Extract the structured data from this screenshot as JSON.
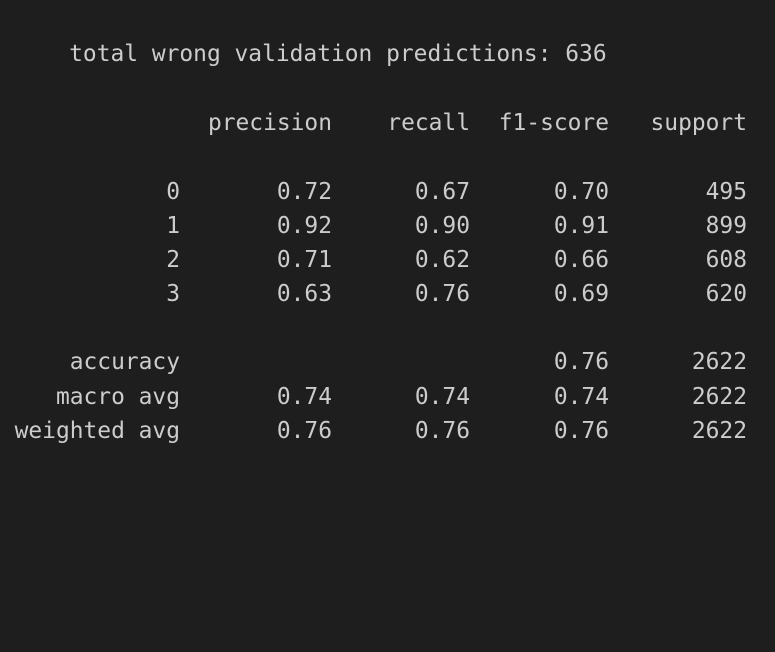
{
  "summary": "total wrong validation predictions: 636",
  "report": {
    "headers": {
      "precision": "precision",
      "recall": "recall",
      "f1": "f1-score",
      "support": "support"
    },
    "rows": [
      {
        "label": "0",
        "precision": "0.72",
        "recall": "0.67",
        "f1": "0.70",
        "support": "495"
      },
      {
        "label": "1",
        "precision": "0.92",
        "recall": "0.90",
        "f1": "0.91",
        "support": "899"
      },
      {
        "label": "2",
        "precision": "0.71",
        "recall": "0.62",
        "f1": "0.66",
        "support": "608"
      },
      {
        "label": "3",
        "precision": "0.63",
        "recall": "0.76",
        "f1": "0.69",
        "support": "620"
      }
    ],
    "totals": [
      {
        "label": "accuracy",
        "precision": "",
        "recall": "",
        "f1": "0.76",
        "support": "2622"
      },
      {
        "label": "macro avg",
        "precision": "0.74",
        "recall": "0.74",
        "f1": "0.74",
        "support": "2622"
      },
      {
        "label": "weighted avg",
        "precision": "0.76",
        "recall": "0.76",
        "f1": "0.76",
        "support": "2622"
      }
    ]
  }
}
